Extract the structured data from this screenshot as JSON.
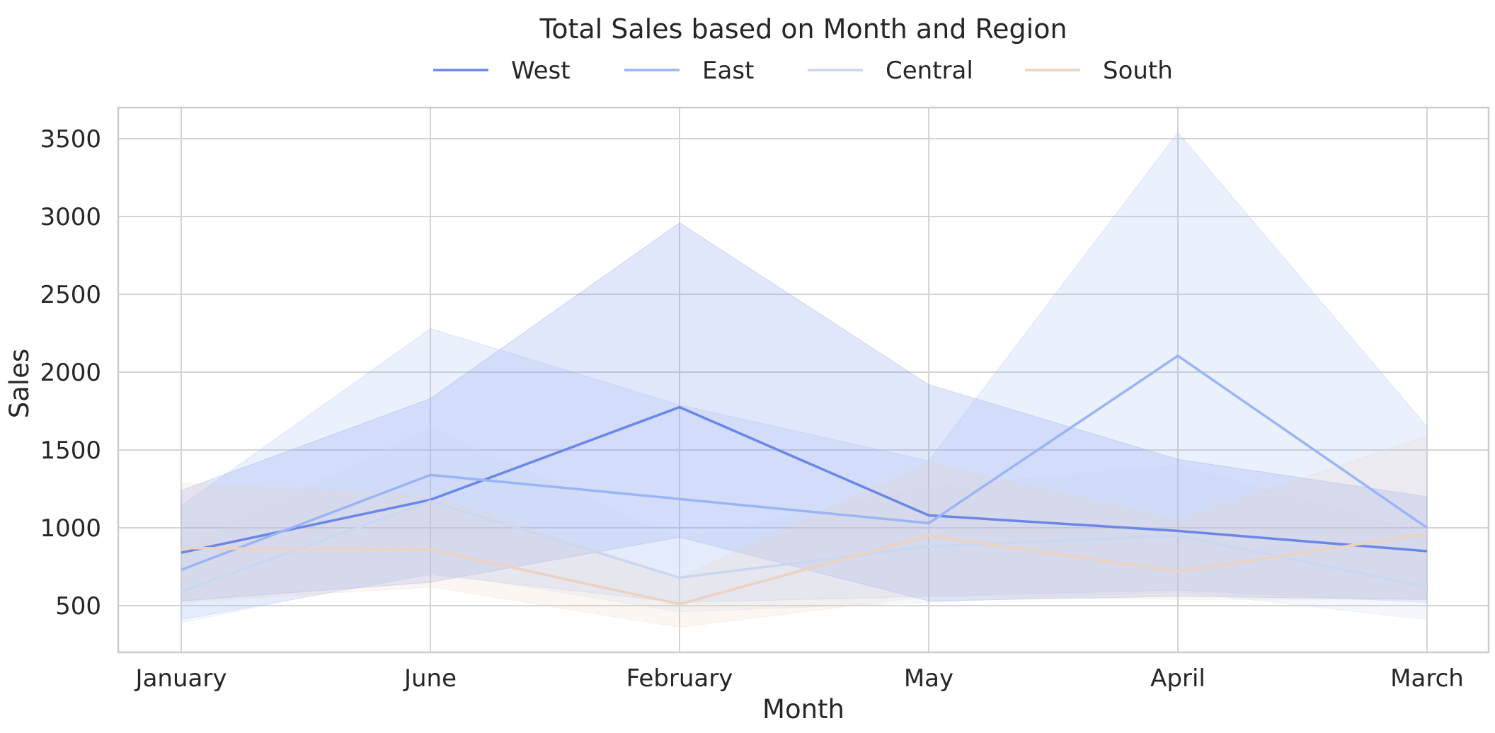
{
  "chart_data": {
    "type": "line",
    "title": "Total Sales based on Month and Region",
    "xlabel": "Month",
    "ylabel": "Sales",
    "categories": [
      "January",
      "June",
      "February",
      "May",
      "April",
      "March"
    ],
    "ylim": [
      200,
      3700
    ],
    "yticks": [
      500,
      1000,
      1500,
      2000,
      2500,
      3000,
      3500
    ],
    "grid": true,
    "legend_position": "top-center",
    "series": [
      {
        "name": "West",
        "color": "#6a87e8",
        "values": [
          840,
          1180,
          1775,
          1080,
          980,
          850
        ],
        "ci_low": [
          530,
          650,
          940,
          530,
          560,
          540
        ],
        "ci_high": [
          1240,
          1830,
          2960,
          1920,
          1440,
          1200
        ]
      },
      {
        "name": "East",
        "color": "#9ab5f6",
        "values": [
          730,
          1340,
          1185,
          1030,
          2105,
          1000
        ],
        "ci_low": [
          410,
          700,
          520,
          560,
          600,
          520
        ],
        "ci_high": [
          1140,
          2280,
          1790,
          1430,
          3540,
          1650
        ]
      },
      {
        "name": "Central",
        "color": "#c9d7f0",
        "values": [
          590,
          1170,
          680,
          880,
          950,
          620
        ],
        "ci_low": [
          390,
          720,
          460,
          520,
          590,
          410
        ],
        "ci_high": [
          870,
          1640,
          930,
          1260,
          1400,
          960
        ]
      },
      {
        "name": "South",
        "color": "#ecd2c0",
        "values": [
          870,
          860,
          510,
          950,
          720,
          960
        ],
        "ci_low": [
          520,
          620,
          360,
          560,
          540,
          540
        ],
        "ci_high": [
          1290,
          1210,
          680,
          1420,
          1050,
          1590
        ]
      }
    ]
  }
}
